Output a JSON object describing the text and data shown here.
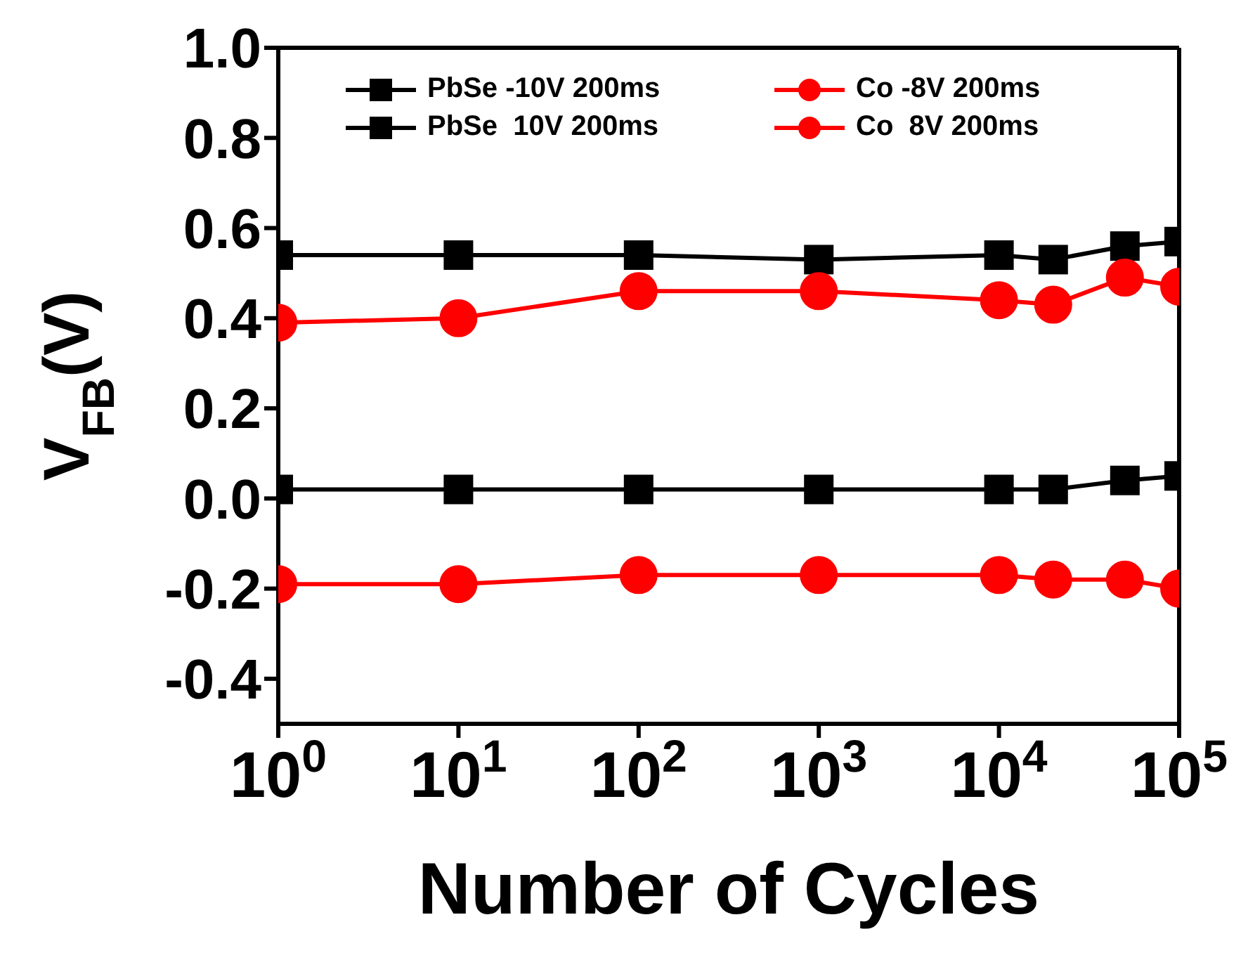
{
  "chart_data": {
    "type": "line",
    "xlabel": "Number of Cycles",
    "ylabel": "V$_{FB}$(V)",
    "log": "x",
    "x": [
      1,
      10,
      100,
      1000,
      10000,
      20000,
      50000,
      100000
    ],
    "xlim": [
      1,
      100000
    ],
    "xticks": [
      {
        "value": 1,
        "label": "10$^{0}$"
      },
      {
        "value": 10,
        "label": "10$^{1}$"
      },
      {
        "value": 100,
        "label": "10$^{2}$"
      },
      {
        "value": 1000,
        "label": "10$^{3}$"
      },
      {
        "value": 10000,
        "label": "10$^{4}$"
      },
      {
        "value": 100000,
        "label": "10$^{5}$"
      }
    ],
    "ylim": [
      -0.5,
      1.0
    ],
    "yticks": [
      {
        "value": -0.4,
        "label": "-0.4"
      },
      {
        "value": -0.2,
        "label": "-0.2"
      },
      {
        "value": 0,
        "label": "0.0"
      },
      {
        "value": 0.2,
        "label": "0.2"
      },
      {
        "value": 0.4,
        "label": "0.4"
      },
      {
        "value": 0.6,
        "label": "0.6"
      },
      {
        "value": 0.8,
        "label": "0.8"
      },
      {
        "value": 1.0,
        "label": "1.0"
      }
    ],
    "grid": false,
    "legend": "top",
    "line_style": "solid",
    "series": [
      {
        "name": "PbSe -10V 200ms",
        "color": "#000000",
        "marker": "square",
        "values": [
          0.02,
          0.02,
          0.02,
          0.02,
          0.02,
          0.02,
          0.04,
          0.05
        ]
      },
      {
        "name": "Co -8V 200ms",
        "color": "#ff0000",
        "marker": "circle",
        "values": [
          -0.19,
          -0.19,
          -0.17,
          -0.17,
          -0.17,
          -0.18,
          -0.18,
          -0.2
        ]
      },
      {
        "name": "PbSe  10V 200ms",
        "color": "#000000",
        "marker": "square",
        "values": [
          0.54,
          0.54,
          0.54,
          0.53,
          0.54,
          0.53,
          0.56,
          0.57
        ]
      },
      {
        "name": "Co  8V 200ms",
        "color": "#ff0000",
        "marker": "circle",
        "values": [
          0.39,
          0.4,
          0.46,
          0.46,
          0.44,
          0.43,
          0.49,
          0.47
        ]
      }
    ]
  }
}
